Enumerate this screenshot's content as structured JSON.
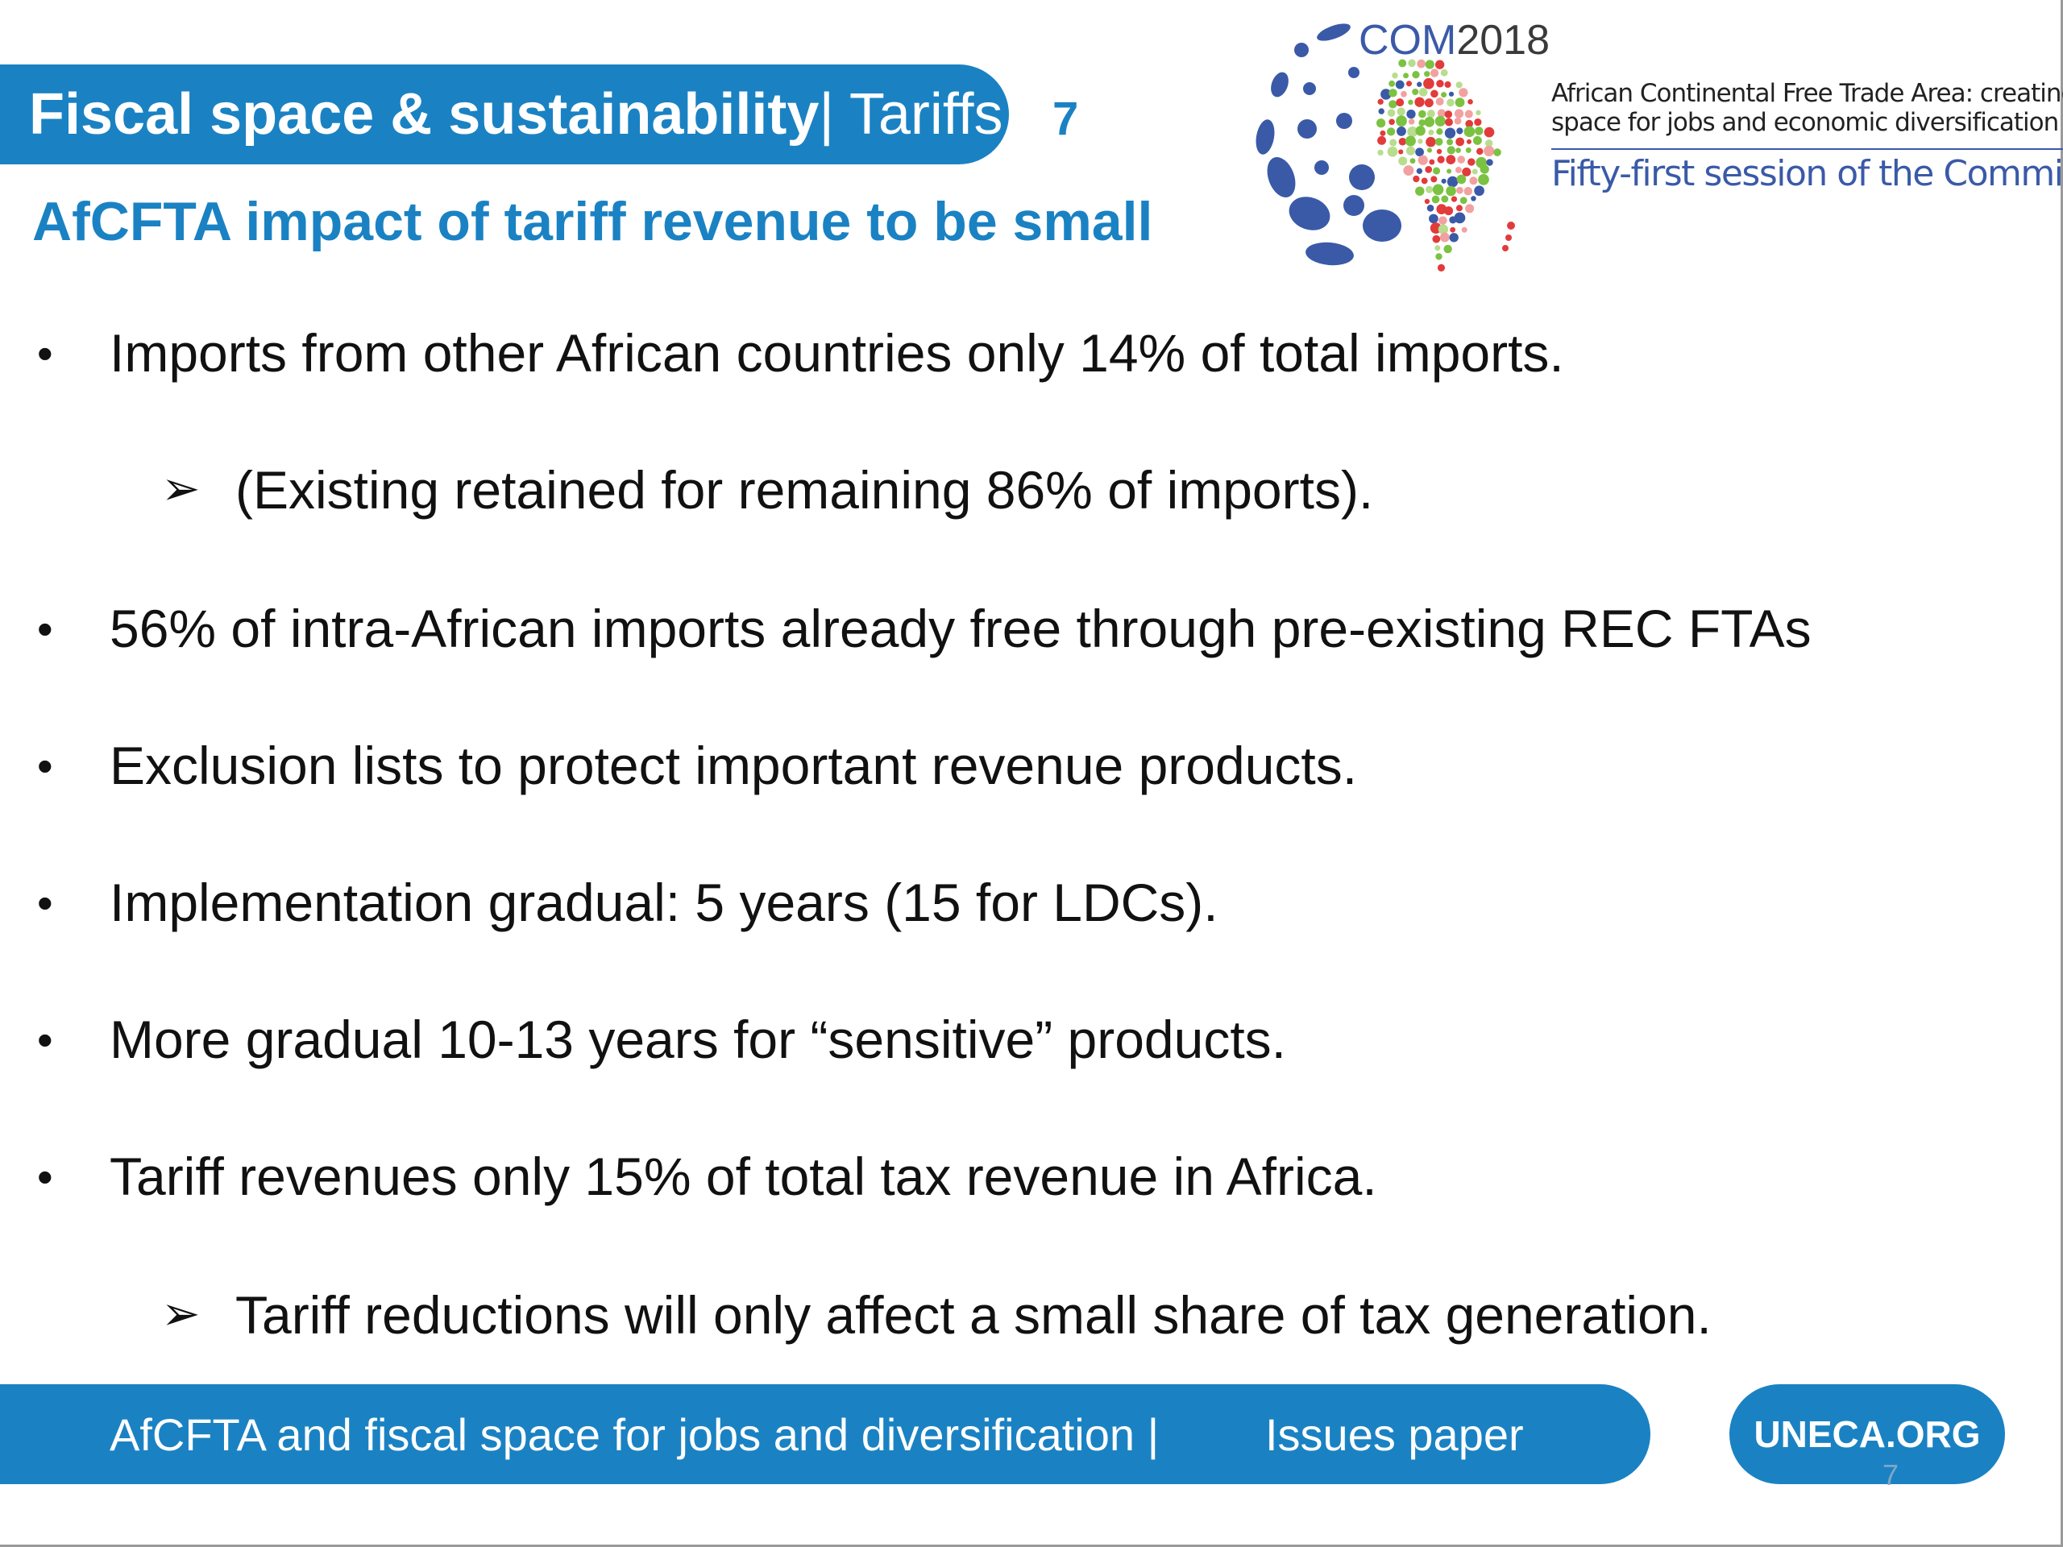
{
  "header": {
    "title_bold": "Fiscal space & sustainability",
    "title_rest": "| Tariffs",
    "slide_number": "7",
    "subtitle": "AfCFTA impact of tariff revenue to be small"
  },
  "logo": {
    "com": "COM",
    "year": "2018",
    "line1": "African Continental Free Trade Area: creating fiscal",
    "line2": "space for jobs and economic diversification",
    "line3": "Fifty-first session of the Commission",
    "colors": {
      "blue": "#3a5aa8",
      "red": "#e23b3b",
      "green": "#7cc242"
    }
  },
  "body": {
    "items": [
      {
        "level": 1,
        "marker": "•",
        "text": "Imports from other African countries only 14% of total imports."
      },
      {
        "level": 2,
        "marker": "➢",
        "text": "(Existing retained for remaining 86% of imports)."
      },
      {
        "level": 1,
        "marker": "•",
        "text": "56% of intra-African imports already free through pre-existing REC FTAs"
      },
      {
        "level": 1,
        "marker": "•",
        "text": "Exclusion lists to protect important revenue products."
      },
      {
        "level": 1,
        "marker": "•",
        "text": "Implementation gradual: 5 years (15 for LDCs)."
      },
      {
        "level": 1,
        "marker": "•",
        "text": "More gradual 10-13 years for “sensitive” products."
      },
      {
        "level": 1,
        "marker": "•",
        "text": "Tariff revenues only 15% of total tax revenue in Africa."
      },
      {
        "level": 2,
        "marker": "➢",
        "text": "Tariff reductions will only affect a small share of tax generation."
      }
    ]
  },
  "footer": {
    "left": "AfCFTA and fiscal space for jobs and diversification |",
    "right": "Issues paper",
    "site": "UNECA.ORG",
    "page": "7"
  },
  "theme": {
    "accent": "#1a82c3"
  }
}
